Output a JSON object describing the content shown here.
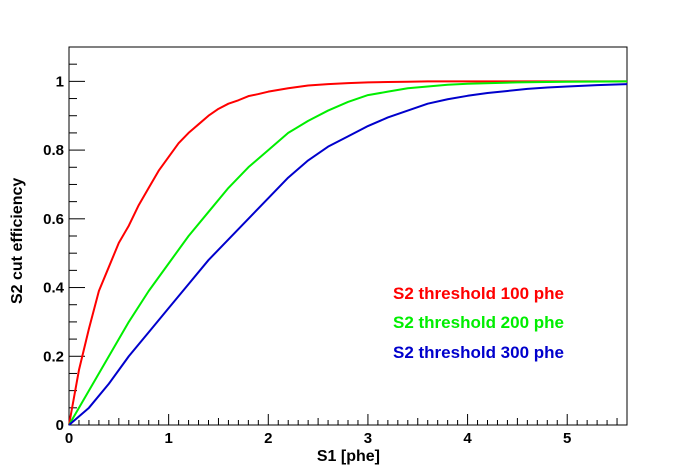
{
  "chart_data": {
    "type": "line",
    "title": "",
    "xlabel": "S1 [phe]",
    "ylabel": "S2 cut efficiency",
    "xlim": [
      0,
      5.6
    ],
    "ylim": [
      0,
      1.1
    ],
    "x_ticks": [
      0,
      1,
      2,
      3,
      4,
      5
    ],
    "x_tick_labels": [
      "0",
      "1",
      "2",
      "3",
      "4",
      "5"
    ],
    "y_ticks": [
      0,
      0.2,
      0.4,
      0.6,
      0.8,
      1
    ],
    "y_tick_labels": [
      "0",
      "0.2",
      "0.4",
      "0.6",
      "0.8",
      "1"
    ],
    "grid": false,
    "legend_position": "lower-right",
    "series": [
      {
        "name": "S2 threshold 100 phe",
        "color": "#ff0000",
        "x": [
          0,
          0.1,
          0.2,
          0.3,
          0.4,
          0.5,
          0.6,
          0.7,
          0.8,
          0.9,
          1.0,
          1.1,
          1.2,
          1.3,
          1.4,
          1.5,
          1.6,
          1.7,
          1.8,
          1.9,
          2.0,
          2.2,
          2.4,
          2.6,
          2.8,
          3.0,
          3.2,
          3.4,
          3.6,
          3.8,
          4.0,
          4.5,
          5.0,
          5.6
        ],
        "y": [
          0,
          0.16,
          0.28,
          0.39,
          0.46,
          0.53,
          0.58,
          0.64,
          0.69,
          0.74,
          0.78,
          0.82,
          0.85,
          0.875,
          0.9,
          0.92,
          0.935,
          0.945,
          0.957,
          0.963,
          0.97,
          0.98,
          0.988,
          0.992,
          0.995,
          0.997,
          0.998,
          0.999,
          1.0,
          1.0,
          1.0,
          1.0,
          1.0,
          1.0
        ]
      },
      {
        "name": "S2 threshold 200 phe",
        "color": "#00ee00",
        "x": [
          0,
          0.2,
          0.4,
          0.6,
          0.8,
          1.0,
          1.2,
          1.4,
          1.6,
          1.8,
          2.0,
          2.2,
          2.4,
          2.6,
          2.8,
          3.0,
          3.2,
          3.4,
          3.6,
          3.8,
          4.0,
          4.5,
          5.0,
          5.6
        ],
        "y": [
          0,
          0.1,
          0.2,
          0.3,
          0.39,
          0.47,
          0.55,
          0.62,
          0.69,
          0.75,
          0.8,
          0.85,
          0.885,
          0.915,
          0.94,
          0.96,
          0.97,
          0.98,
          0.985,
          0.99,
          0.993,
          0.997,
          0.999,
          1.0
        ]
      },
      {
        "name": "S2 threshold 300 phe",
        "color": "#0000cc",
        "x": [
          0,
          0.2,
          0.4,
          0.6,
          0.8,
          1.0,
          1.2,
          1.4,
          1.6,
          1.8,
          2.0,
          2.2,
          2.4,
          2.6,
          2.8,
          3.0,
          3.2,
          3.4,
          3.6,
          3.8,
          4.0,
          4.2,
          4.4,
          4.6,
          4.8,
          5.0,
          5.3,
          5.6
        ],
        "y": [
          0,
          0.05,
          0.12,
          0.2,
          0.27,
          0.34,
          0.41,
          0.48,
          0.54,
          0.6,
          0.66,
          0.72,
          0.77,
          0.81,
          0.84,
          0.87,
          0.895,
          0.915,
          0.935,
          0.948,
          0.958,
          0.966,
          0.972,
          0.978,
          0.982,
          0.985,
          0.989,
          0.992
        ]
      }
    ]
  }
}
